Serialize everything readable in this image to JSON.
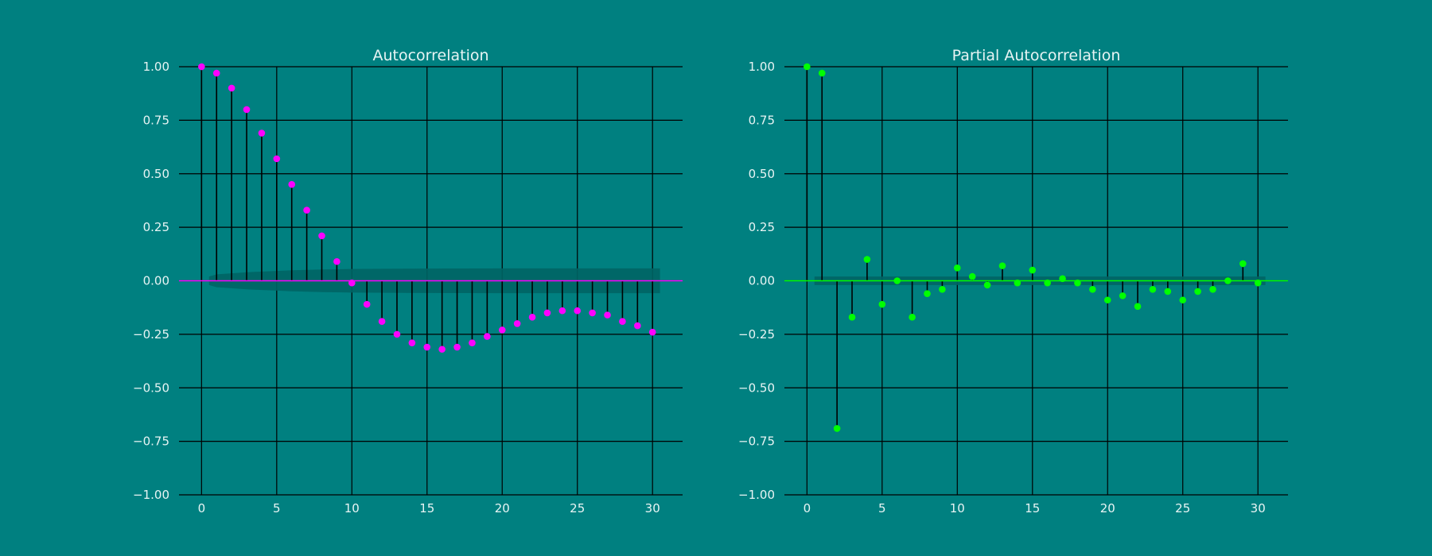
{
  "figure": {
    "background": "#008080"
  },
  "chart_data": [
    {
      "type": "stem",
      "title": "Autocorrelation",
      "xlabel": "",
      "ylabel": "",
      "xlim": [
        -1.5,
        32
      ],
      "ylim": [
        -1.0,
        1.0
      ],
      "xticks": [
        0,
        5,
        10,
        15,
        20,
        25,
        30
      ],
      "yticks": [
        1.0,
        0.75,
        0.5,
        0.25,
        0.0,
        -0.25,
        -0.5,
        -0.75,
        -1.0
      ],
      "xtick_labels": [
        "0",
        "5",
        "10",
        "15",
        "20",
        "25",
        "30"
      ],
      "ytick_labels": [
        "1.00",
        "0.75",
        "0.50",
        "0.25",
        "0.00",
        "−0.25",
        "−0.50",
        "−0.75",
        "−1.00"
      ],
      "grid": true,
      "marker_color": "#ff00ff",
      "zero_line_color": "#ff00ff",
      "confidence_band_color": "#006464",
      "lags": [
        0,
        1,
        2,
        3,
        4,
        5,
        6,
        7,
        8,
        9,
        10,
        11,
        12,
        13,
        14,
        15,
        16,
        17,
        18,
        19,
        20,
        21,
        22,
        23,
        24,
        25,
        26,
        27,
        28,
        29,
        30
      ],
      "values": [
        1.0,
        0.97,
        0.9,
        0.8,
        0.69,
        0.57,
        0.45,
        0.33,
        0.21,
        0.09,
        -0.01,
        -0.11,
        -0.19,
        -0.25,
        -0.29,
        -0.31,
        -0.32,
        -0.31,
        -0.29,
        -0.26,
        -0.23,
        -0.2,
        -0.17,
        -0.15,
        -0.14,
        -0.14,
        -0.15,
        -0.16,
        -0.19,
        -0.21,
        -0.24
      ],
      "confidence_band": {
        "lags": [
          0.5,
          1,
          2,
          3,
          4,
          5,
          6,
          7,
          8,
          9,
          10,
          15,
          20,
          25,
          30.5
        ],
        "upper": [
          0.02,
          0.03,
          0.035,
          0.04,
          0.043,
          0.046,
          0.049,
          0.051,
          0.053,
          0.054,
          0.055,
          0.057,
          0.058,
          0.058,
          0.058
        ],
        "lower": [
          -0.02,
          -0.03,
          -0.035,
          -0.04,
          -0.043,
          -0.046,
          -0.049,
          -0.051,
          -0.053,
          -0.054,
          -0.055,
          -0.057,
          -0.058,
          -0.058,
          -0.058
        ]
      }
    },
    {
      "type": "stem",
      "title": "Partial Autocorrelation",
      "xlabel": "",
      "ylabel": "",
      "xlim": [
        -1.5,
        32
      ],
      "ylim": [
        -1.0,
        1.0
      ],
      "xticks": [
        0,
        5,
        10,
        15,
        20,
        25,
        30
      ],
      "yticks": [
        1.0,
        0.75,
        0.5,
        0.25,
        0.0,
        -0.25,
        -0.5,
        -0.75,
        -1.0
      ],
      "xtick_labels": [
        "0",
        "5",
        "10",
        "15",
        "20",
        "25",
        "30"
      ],
      "ytick_labels": [
        "1.00",
        "0.75",
        "0.50",
        "0.25",
        "0.00",
        "−0.25",
        "−0.50",
        "−0.75",
        "−1.00"
      ],
      "grid": true,
      "marker_color": "#00ff00",
      "zero_line_color": "#00ff00",
      "confidence_band_color": "#006464",
      "lags": [
        0,
        1,
        2,
        3,
        4,
        5,
        6,
        7,
        8,
        9,
        10,
        11,
        12,
        13,
        14,
        15,
        16,
        17,
        18,
        19,
        20,
        21,
        22,
        23,
        24,
        25,
        26,
        27,
        28,
        29,
        30
      ],
      "values": [
        1.0,
        0.97,
        -0.69,
        -0.17,
        0.1,
        -0.11,
        0.0,
        -0.17,
        -0.06,
        -0.04,
        0.06,
        0.02,
        -0.02,
        0.07,
        -0.01,
        0.05,
        -0.01,
        0.01,
        -0.01,
        -0.04,
        -0.09,
        -0.07,
        -0.12,
        -0.04,
        -0.05,
        -0.09,
        -0.05,
        -0.04,
        0.0,
        0.08,
        -0.01
      ],
      "confidence_band": {
        "lags": [
          0.5,
          30.5
        ],
        "upper": [
          0.02,
          0.02
        ],
        "lower": [
          -0.02,
          -0.02
        ]
      }
    }
  ]
}
